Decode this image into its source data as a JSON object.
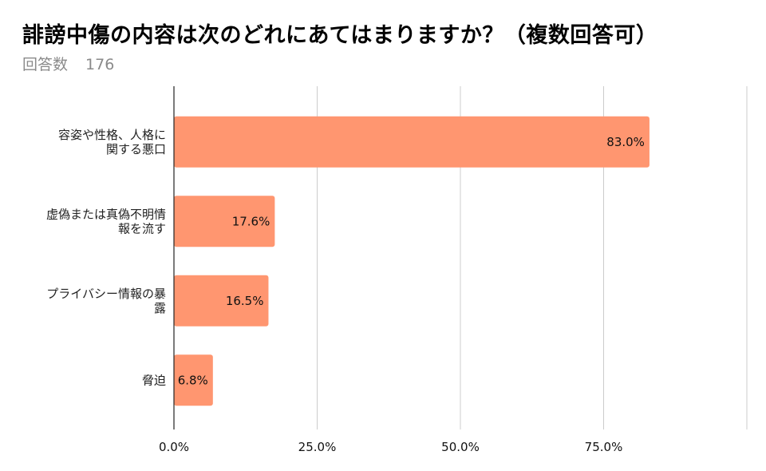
{
  "header": {
    "title": "誹謗中傷の内容は次のどれにあてはまりますか？（複数回答可）",
    "response_label": "回答数",
    "response_count": "176"
  },
  "chart_data": {
    "type": "bar",
    "orientation": "horizontal",
    "categories": [
      [
        "容姿や性格、人格に",
        "関する悪口"
      ],
      [
        "虚偽または真偽不明情",
        "報を流す"
      ],
      [
        "プライバシー情報の暴",
        "露"
      ],
      [
        "脅迫"
      ]
    ],
    "values": [
      83.0,
      17.6,
      16.5,
      6.8
    ],
    "data_labels": [
      "83.0%",
      "17.6%",
      "16.5%",
      "6.8%"
    ],
    "xlim": [
      0,
      100
    ],
    "x_ticks": [
      0,
      25,
      50,
      75,
      100
    ],
    "x_tick_labels": [
      "0.0%",
      "25.0%",
      "50.0%",
      "75.0%",
      ""
    ],
    "grid": true,
    "legend": "none",
    "bar_color": "#ff9670",
    "grid_color": "#cccccc"
  }
}
